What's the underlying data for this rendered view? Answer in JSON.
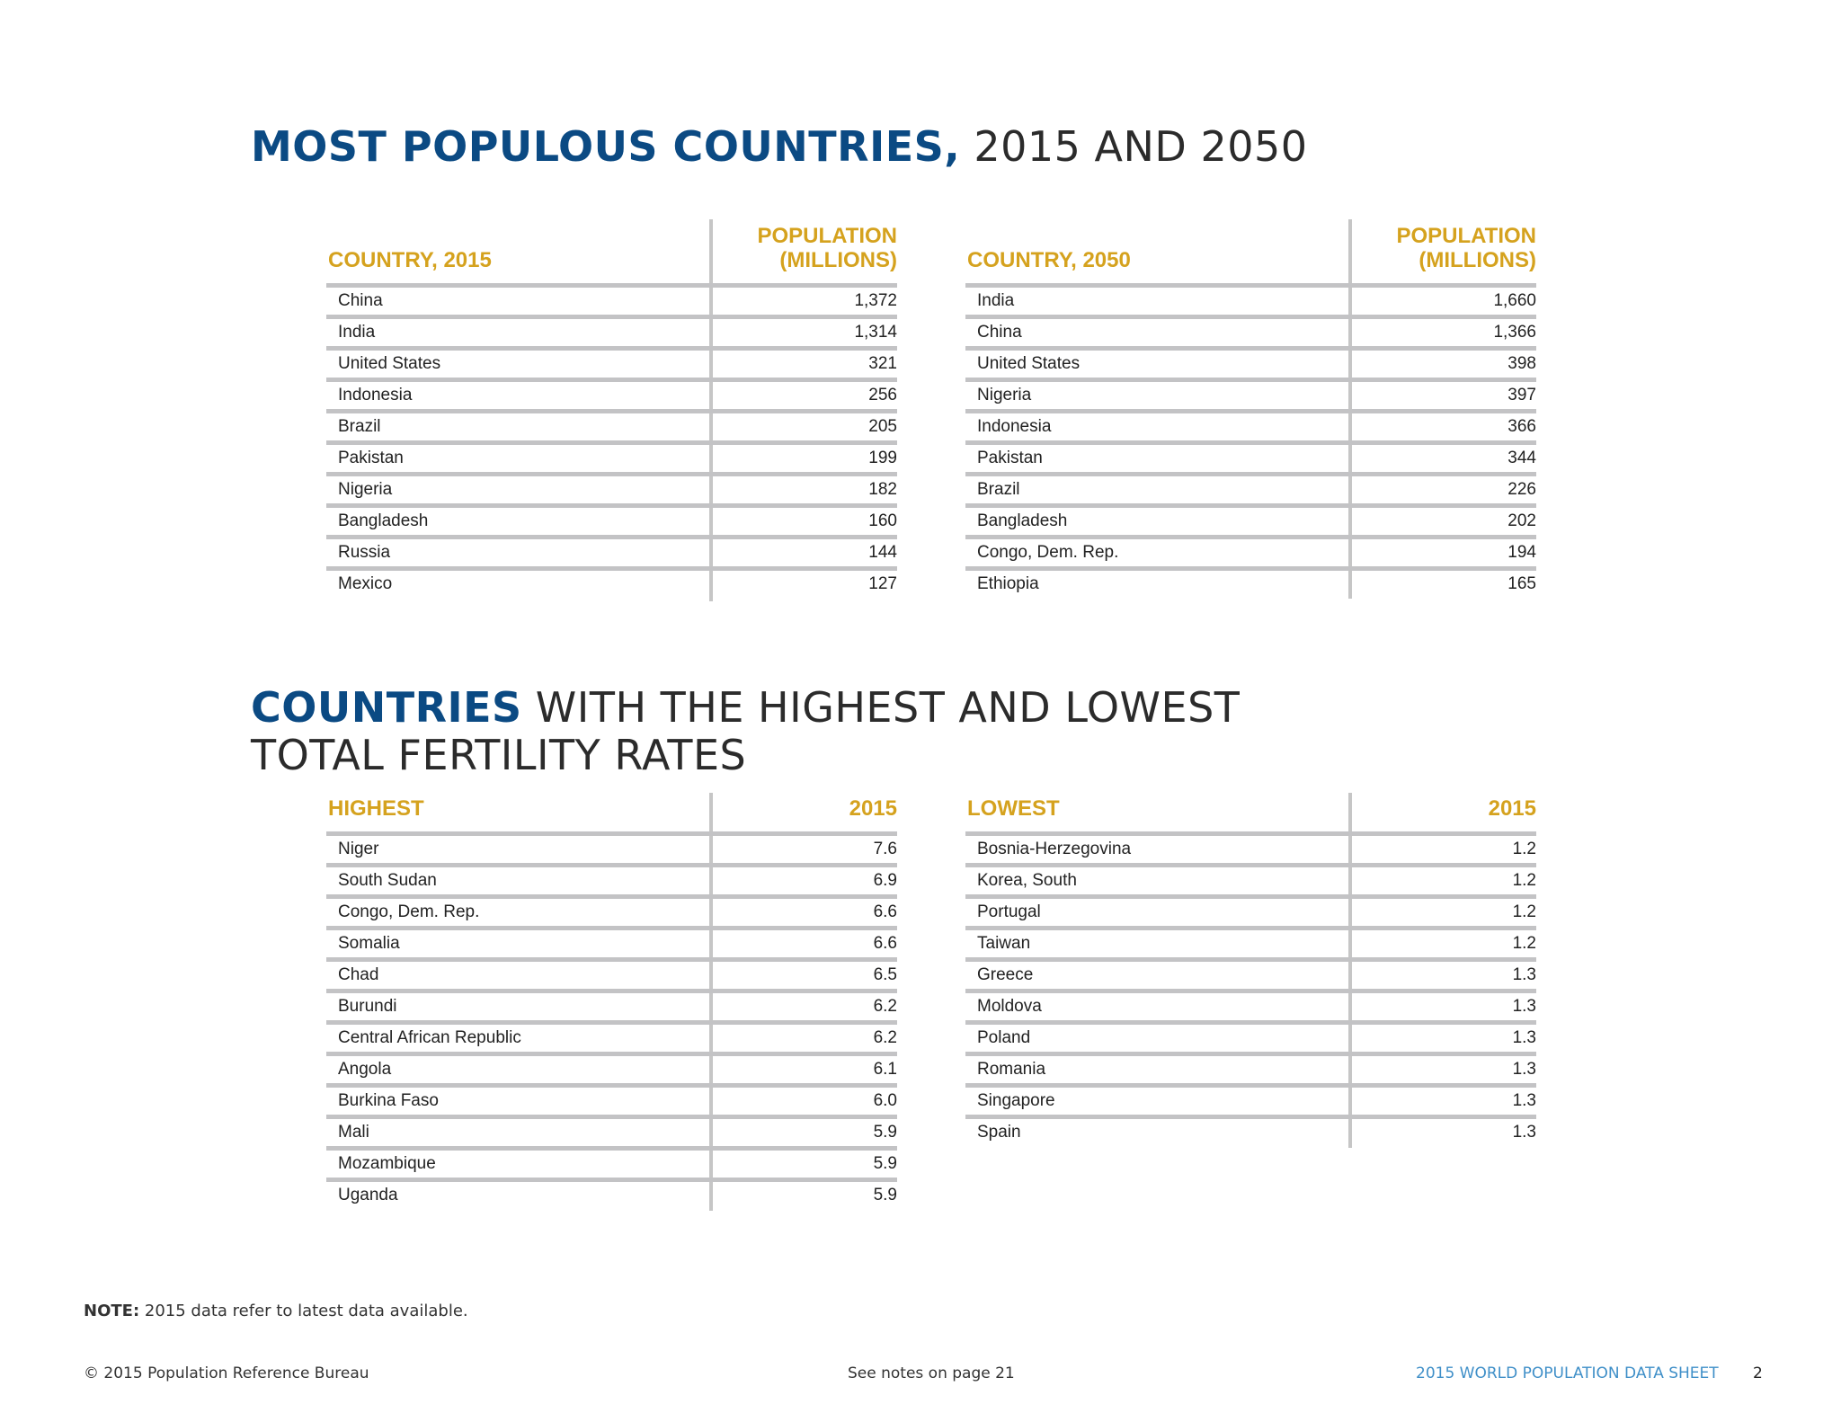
{
  "section1": {
    "title_bold": "MOST POPULOUS COUNTRIES,",
    "title_rest": " 2015 AND 2050",
    "table_2015": {
      "header_country": "COUNTRY, 2015",
      "header_value_line1": "POPULATION",
      "header_value_line2": "(MILLIONS)",
      "rows": [
        {
          "name": "China",
          "value": "1,372"
        },
        {
          "name": "India",
          "value": "1,314"
        },
        {
          "name": "United States",
          "value": "321"
        },
        {
          "name": "Indonesia",
          "value": "256"
        },
        {
          "name": "Brazil",
          "value": "205"
        },
        {
          "name": "Pakistan",
          "value": "199"
        },
        {
          "name": "Nigeria",
          "value": "182"
        },
        {
          "name": "Bangladesh",
          "value": "160"
        },
        {
          "name": "Russia",
          "value": "144"
        },
        {
          "name": "Mexico",
          "value": "127"
        }
      ]
    },
    "table_2050": {
      "header_country": "COUNTRY, 2050",
      "header_value_line1": "POPULATION",
      "header_value_line2": "(MILLIONS)",
      "rows": [
        {
          "name": "India",
          "value": "1,660"
        },
        {
          "name": "China",
          "value": "1,366"
        },
        {
          "name": "United States",
          "value": "398"
        },
        {
          "name": "Nigeria",
          "value": "397"
        },
        {
          "name": "Indonesia",
          "value": "366"
        },
        {
          "name": "Pakistan",
          "value": "344"
        },
        {
          "name": "Brazil",
          "value": "226"
        },
        {
          "name": "Bangladesh",
          "value": "202"
        },
        {
          "name": "Congo, Dem. Rep.",
          "value": "194"
        },
        {
          "name": "Ethiopia",
          "value": "165"
        }
      ]
    }
  },
  "section2": {
    "title_bold": "COUNTRIES",
    "title_rest_line1": " WITH THE HIGHEST AND LOWEST",
    "title_line2": "TOTAL FERTILITY RATES",
    "table_highest": {
      "header_country": "HIGHEST",
      "header_value": "2015",
      "rows": [
        {
          "name": "Niger",
          "value": "7.6"
        },
        {
          "name": "South Sudan",
          "value": "6.9"
        },
        {
          "name": "Congo, Dem. Rep.",
          "value": "6.6"
        },
        {
          "name": "Somalia",
          "value": "6.6"
        },
        {
          "name": "Chad",
          "value": "6.5"
        },
        {
          "name": "Burundi",
          "value": "6.2"
        },
        {
          "name": "Central African Republic",
          "value": "6.2"
        },
        {
          "name": "Angola",
          "value": "6.1"
        },
        {
          "name": "Burkina Faso",
          "value": "6.0"
        },
        {
          "name": "Mali",
          "value": "5.9"
        },
        {
          "name": "Mozambique",
          "value": "5.9"
        },
        {
          "name": "Uganda",
          "value": "5.9"
        }
      ]
    },
    "table_lowest": {
      "header_country": "LOWEST",
      "header_value": "2015",
      "rows": [
        {
          "name": "Bosnia-Herzegovina",
          "value": "1.2"
        },
        {
          "name": "Korea, South",
          "value": "1.2"
        },
        {
          "name": "Portugal",
          "value": "1.2"
        },
        {
          "name": "Taiwan",
          "value": "1.2"
        },
        {
          "name": "Greece",
          "value": "1.3"
        },
        {
          "name": "Moldova",
          "value": "1.3"
        },
        {
          "name": "Poland",
          "value": "1.3"
        },
        {
          "name": "Romania",
          "value": "1.3"
        },
        {
          "name": "Singapore",
          "value": "1.3"
        },
        {
          "name": "Spain",
          "value": "1.3"
        }
      ]
    }
  },
  "note": {
    "label": "NOTE:",
    "text": " 2015 data refer to latest data available."
  },
  "footer": {
    "copyright": "© 2015 Population Reference Bureau",
    "see_notes": "See notes on page 21",
    "publication": "2015 WORLD POPULATION DATA SHEET",
    "page_number": "2"
  },
  "colors": {
    "title_blue": "#0b4a83",
    "header_gold": "#d5a21e",
    "footer_blue": "#3f8fc8",
    "rule_gray": "#c3c3c5"
  }
}
